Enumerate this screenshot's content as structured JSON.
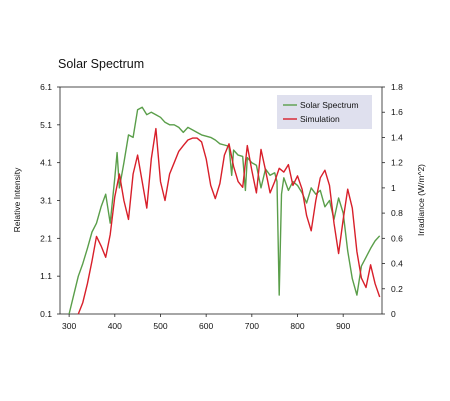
{
  "chart_data": {
    "type": "line",
    "title": "Solar Spectrum",
    "xlabel": "",
    "ylabel_left": "Relative Intensity",
    "ylabel_right": "Irradiance (W/m^2)",
    "xlim": [
      280,
      985
    ],
    "ylim_left": [
      0.1,
      6.1
    ],
    "ylim_right": [
      0,
      1.8
    ],
    "x_ticks": [
      "300",
      "400",
      "500",
      "600",
      "700",
      "800",
      "900"
    ],
    "y_left_ticks": [
      "0.1",
      "1.1",
      "2.1",
      "3.1",
      "4.1",
      "5.1",
      "6.1"
    ],
    "y_right_ticks": [
      "0",
      "0.2",
      "0.4",
      "0.6",
      "0.8",
      "1",
      "1.2",
      "1.4",
      "1.6",
      "1.8"
    ],
    "grid": false,
    "legend_position": "top-right",
    "series": [
      {
        "name": "Solar Spectrum",
        "axis": "right",
        "color": "#5a9e4a",
        "x": [
          300,
          310,
          320,
          330,
          340,
          350,
          360,
          370,
          380,
          390,
          400,
          405,
          410,
          420,
          430,
          440,
          450,
          460,
          470,
          480,
          490,
          500,
          510,
          520,
          530,
          540,
          550,
          560,
          570,
          580,
          590,
          600,
          610,
          620,
          630,
          640,
          650,
          656,
          660,
          670,
          680,
          686,
          690,
          700,
          710,
          720,
          730,
          740,
          750,
          755,
          760,
          765,
          770,
          780,
          790,
          800,
          810,
          820,
          830,
          840,
          850,
          860,
          870,
          880,
          890,
          900,
          910,
          920,
          930,
          940,
          950,
          960,
          970,
          980
        ],
        "y": [
          0.0,
          0.15,
          0.3,
          0.4,
          0.52,
          0.65,
          0.72,
          0.85,
          0.95,
          0.72,
          1.08,
          1.28,
          1.0,
          1.2,
          1.42,
          1.4,
          1.62,
          1.64,
          1.58,
          1.6,
          1.58,
          1.56,
          1.52,
          1.5,
          1.5,
          1.48,
          1.44,
          1.48,
          1.46,
          1.44,
          1.42,
          1.41,
          1.4,
          1.38,
          1.35,
          1.34,
          1.33,
          1.1,
          1.3,
          1.26,
          1.25,
          0.98,
          1.24,
          1.2,
          1.18,
          1.0,
          1.15,
          1.1,
          1.12,
          1.05,
          0.15,
          0.95,
          1.08,
          0.98,
          1.05,
          1.02,
          0.96,
          0.88,
          1.0,
          0.95,
          0.98,
          0.85,
          0.9,
          0.75,
          0.92,
          0.8,
          0.5,
          0.28,
          0.15,
          0.38,
          0.45,
          0.52,
          0.58,
          0.62
        ]
      },
      {
        "name": "Simulation",
        "axis": "left",
        "color": "#d81f2a",
        "x": [
          320,
          330,
          340,
          350,
          360,
          370,
          380,
          390,
          400,
          410,
          420,
          430,
          440,
          450,
          460,
          470,
          480,
          490,
          500,
          510,
          520,
          530,
          540,
          550,
          560,
          570,
          580,
          590,
          600,
          610,
          620,
          630,
          640,
          650,
          660,
          670,
          680,
          690,
          700,
          710,
          720,
          730,
          740,
          750,
          760,
          770,
          780,
          790,
          800,
          810,
          820,
          830,
          840,
          850,
          860,
          870,
          880,
          890,
          900,
          910,
          920,
          930,
          940,
          950,
          960,
          970,
          980
        ],
        "y": [
          0.1,
          0.4,
          0.9,
          1.5,
          2.15,
          1.9,
          1.6,
          2.2,
          3.2,
          3.8,
          3.1,
          2.6,
          3.8,
          4.3,
          3.6,
          2.9,
          4.2,
          5.0,
          3.6,
          3.1,
          3.8,
          4.1,
          4.4,
          4.55,
          4.7,
          4.75,
          4.75,
          4.65,
          4.2,
          3.5,
          3.15,
          3.55,
          4.3,
          4.6,
          4.0,
          3.6,
          3.45,
          4.55,
          3.9,
          3.3,
          4.45,
          3.9,
          3.3,
          3.6,
          3.95,
          3.85,
          4.05,
          3.5,
          3.75,
          3.4,
          2.7,
          2.3,
          3.1,
          3.7,
          3.9,
          3.5,
          2.5,
          1.7,
          2.6,
          3.4,
          2.9,
          1.75,
          1.05,
          0.8,
          1.4,
          0.9,
          0.55
        ]
      }
    ]
  }
}
